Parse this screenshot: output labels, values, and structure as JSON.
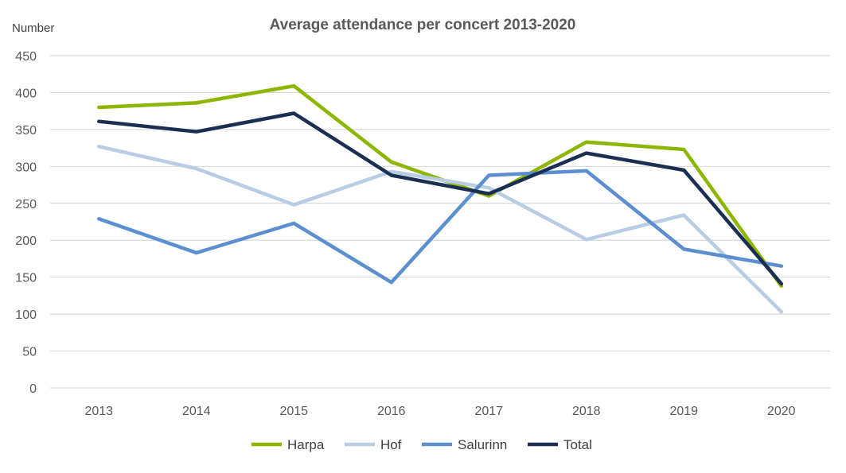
{
  "chart_data": {
    "type": "line",
    "title": "Average attendance per concert 2013-2020",
    "ylabel": "Number",
    "xlabel": "",
    "categories": [
      "2013",
      "2014",
      "2015",
      "2016",
      "2017",
      "2018",
      "2019",
      "2020"
    ],
    "ylim": [
      0,
      450
    ],
    "yticks": [
      0,
      50,
      100,
      150,
      200,
      250,
      300,
      350,
      400,
      450
    ],
    "grid": true,
    "legend_position": "bottom",
    "series": [
      {
        "name": "Harpa",
        "color": "#8db600",
        "values": [
          380,
          386,
          409,
          306,
          260,
          333,
          323,
          138
        ]
      },
      {
        "name": "Hof",
        "color": "#b8cce4",
        "values": [
          327,
          297,
          248,
          293,
          271,
          201,
          234,
          103
        ]
      },
      {
        "name": "Salurinn",
        "color": "#5b8fd0",
        "values": [
          229,
          183,
          223,
          143,
          288,
          294,
          188,
          165
        ]
      },
      {
        "name": "Total",
        "color": "#1a2f52",
        "values": [
          361,
          347,
          372,
          288,
          263,
          318,
          295,
          141
        ]
      }
    ]
  }
}
